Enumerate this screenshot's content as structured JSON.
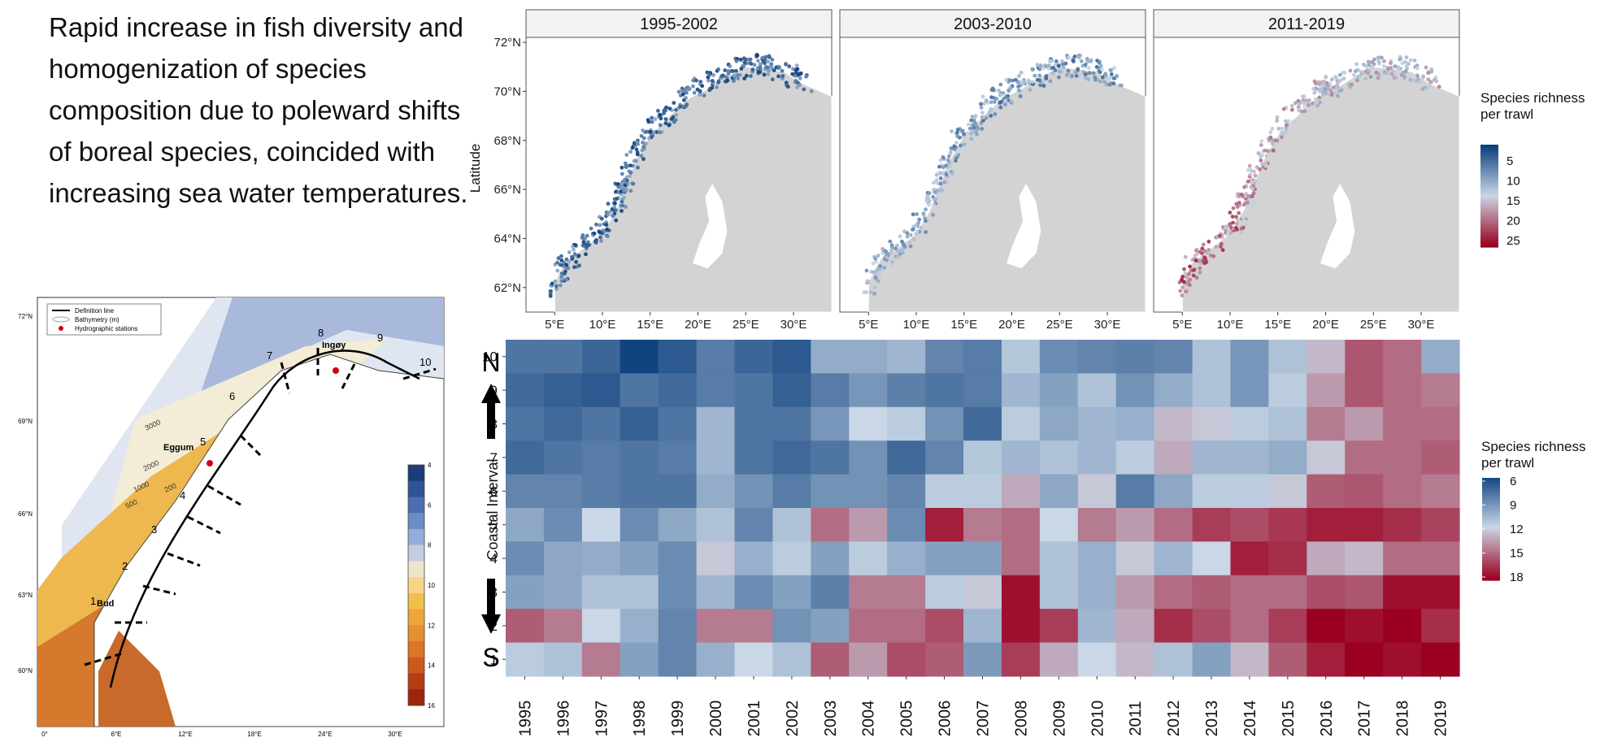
{
  "headline": "Rapid increase in fish diversity and homogenization of species composition due to poleward shifts of boreal species, coincided with increasing sea water temperatures.",
  "colors": {
    "low": "#0b3f7d",
    "mid": "#c9d7e6",
    "high": "#9b0020",
    "land": "#d3d3d3",
    "panel_border": "#555555"
  },
  "map": {
    "legend": [
      "Definition line",
      "Bathymetry (m)",
      "Hydrographic stations"
    ],
    "lat_labels": [
      "72°N",
      "69°N",
      "66°N",
      "63°N",
      "60°N"
    ],
    "lon_labels": [
      "0°",
      "6°E",
      "12°E",
      "18°E",
      "24°E",
      "30°E"
    ],
    "place_names": [
      "Ingøy",
      "Eggum",
      "Bud"
    ],
    "section_numbers": [
      "1",
      "2",
      "3",
      "4",
      "5",
      "6",
      "7",
      "8",
      "9",
      "10"
    ],
    "depth_labels": [
      "3000",
      "2000",
      "1000",
      "500",
      "200"
    ],
    "colorbar_ticks": [
      "4",
      "6",
      "8",
      "10",
      "12",
      "14",
      "16"
    ]
  },
  "chart_data": [
    {
      "type": "scatter",
      "title": "1995-2002",
      "ylabel": "Latitude",
      "x_ticks": [
        "5°E",
        "10°E",
        "15°E",
        "20°E",
        "25°E",
        "30°E"
      ],
      "y_ticks": [
        "62°N",
        "64°N",
        "66°N",
        "68°N",
        "70°N",
        "72°N"
      ],
      "xlim": [
        2,
        34
      ],
      "ylim": [
        61,
        72.2
      ],
      "color_range": [
        5,
        25
      ],
      "mean_richness": 8
    },
    {
      "type": "scatter",
      "title": "2003-2010",
      "x_ticks": [
        "5°E",
        "10°E",
        "15°E",
        "20°E",
        "25°E",
        "30°E"
      ],
      "xlim": [
        2,
        34
      ],
      "ylim": [
        61,
        72.2
      ],
      "color_range": [
        5,
        25
      ],
      "mean_richness": 11
    },
    {
      "type": "scatter",
      "title": "2011-2019",
      "x_ticks": [
        "5°E",
        "10°E",
        "15°E",
        "20°E",
        "25°E",
        "30°E"
      ],
      "xlim": [
        2,
        34
      ],
      "ylim": [
        61,
        72.2
      ],
      "color_range": [
        5,
        25
      ],
      "mean_richness": 15,
      "legend_title": [
        "Species richness",
        "per trawl"
      ],
      "legend_ticks": [
        "5",
        "10",
        "15",
        "20",
        "25"
      ]
    },
    {
      "type": "heatmap",
      "ylabel": "Coastal Interval",
      "north_label": "N",
      "south_label": "S",
      "legend_title": [
        "Species richness",
        "per trawl"
      ],
      "legend_ticks": [
        "6",
        "9",
        "12",
        "15",
        "18"
      ],
      "color_range": [
        5,
        19
      ],
      "x": [
        "1995",
        "1996",
        "1997",
        "1998",
        "1999",
        "2000",
        "2001",
        "2002",
        "2003",
        "2004",
        "2005",
        "2006",
        "2007",
        "2008",
        "2009",
        "2010",
        "2011",
        "2012",
        "2013",
        "2014",
        "2015",
        "2016",
        "2017",
        "2018",
        "2019"
      ],
      "y": [
        "10",
        "9",
        "8",
        "7",
        "6",
        "5",
        "4",
        "3",
        "2",
        "1"
      ],
      "values": [
        [
          7.5,
          7.5,
          6.8,
          5.2,
          6.2,
          7.8,
          6.8,
          6.2,
          10,
          10,
          10.5,
          8.2,
          7.8,
          11.2,
          8.5,
          8.2,
          8,
          8.2,
          11,
          9,
          11,
          13,
          16.2,
          15.5,
          10
        ],
        [
          7,
          6.5,
          6.2,
          7.5,
          7,
          7.8,
          7.5,
          6.5,
          7.8,
          9,
          8,
          7.5,
          7.8,
          10.5,
          9.5,
          11,
          8.8,
          10,
          11,
          9,
          11.5,
          14,
          16.2,
          15.5,
          15
        ],
        [
          7.5,
          7,
          7.5,
          6.5,
          7.5,
          10.5,
          7.5,
          7.5,
          9,
          12,
          11.5,
          8.8,
          7,
          11.5,
          9.8,
          10.5,
          10.2,
          13,
          12.5,
          11.5,
          11,
          15,
          14,
          15.5,
          15.5
        ],
        [
          7,
          7.5,
          7.8,
          7.5,
          7.8,
          10.5,
          7.5,
          7,
          7.5,
          8.8,
          7,
          8.2,
          11.2,
          10.5,
          11,
          10.5,
          11.5,
          13.5,
          10.5,
          10.5,
          10,
          12.5,
          15.5,
          15.5,
          16
        ],
        [
          8.2,
          8.2,
          7.8,
          7.5,
          7.5,
          10,
          8.8,
          7.8,
          8.8,
          8.8,
          8.2,
          11.5,
          11.5,
          13.5,
          9.8,
          12.5,
          7.8,
          9.8,
          11.5,
          11.5,
          12.5,
          16,
          16.2,
          15.5,
          15
        ],
        [
          9.8,
          8.5,
          12,
          8.5,
          9.8,
          11,
          8.2,
          11,
          15.5,
          14,
          8.5,
          18,
          15,
          15.5,
          12,
          15,
          14,
          15.5,
          17,
          16.5,
          17.2,
          18,
          18,
          17.5,
          16.8
        ],
        [
          8.5,
          9.8,
          10,
          9.5,
          8.5,
          12.5,
          10.2,
          11.5,
          9.5,
          11.5,
          10.2,
          9.5,
          9.5,
          15.5,
          11,
          10.2,
          12.5,
          10.5,
          12,
          18,
          17.5,
          13.5,
          13,
          15.5,
          15.5
        ],
        [
          9.5,
          9.8,
          11,
          11,
          8.5,
          10.5,
          8.5,
          9.5,
          8,
          15,
          15,
          11.5,
          12.5,
          18.5,
          11,
          10.2,
          14,
          15.5,
          16,
          15.5,
          15.5,
          16.5,
          16.2,
          18.5,
          18.5
        ],
        [
          16,
          15,
          12,
          10.2,
          8.2,
          15,
          15,
          8.8,
          9.5,
          15.5,
          15.5,
          16.5,
          10.5,
          18.5,
          17,
          10.5,
          13.5,
          17.5,
          16.5,
          15.5,
          17,
          19.5,
          18.5,
          19.5,
          17.5
        ],
        [
          11.5,
          11,
          15,
          9.5,
          8.2,
          10.2,
          12,
          11,
          16,
          14,
          16.5,
          16,
          9.2,
          17,
          13.5,
          12,
          13,
          11,
          9.5,
          13,
          16,
          18,
          19,
          18.5,
          19
        ]
      ]
    }
  ]
}
